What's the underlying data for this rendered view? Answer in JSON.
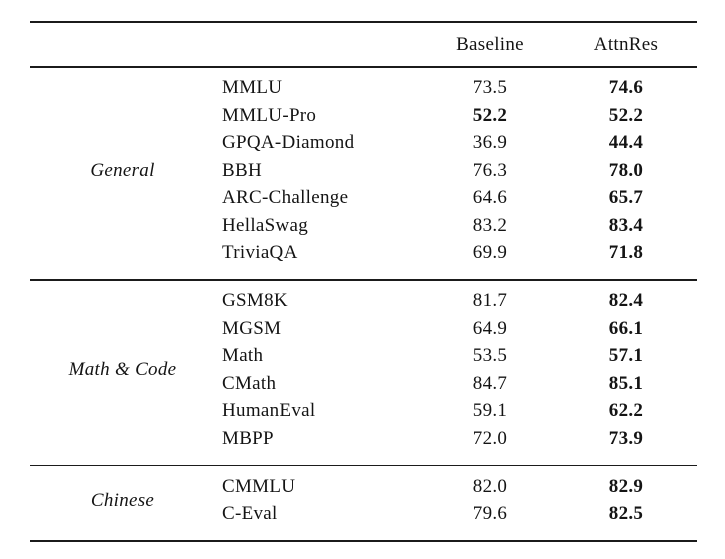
{
  "table": {
    "columns": [
      "Baseline",
      "AttnRes"
    ],
    "sections": [
      {
        "label": "General",
        "rows": [
          {
            "name": "MMLU",
            "baseline": "73.5",
            "attnres": "74.6",
            "baseline_bold": false,
            "attnres_bold": true
          },
          {
            "name": "MMLU-Pro",
            "baseline": "52.2",
            "attnres": "52.2",
            "baseline_bold": true,
            "attnres_bold": true
          },
          {
            "name": "GPQA-Diamond",
            "baseline": "36.9",
            "attnres": "44.4",
            "baseline_bold": false,
            "attnres_bold": true
          },
          {
            "name": "BBH",
            "baseline": "76.3",
            "attnres": "78.0",
            "baseline_bold": false,
            "attnres_bold": true
          },
          {
            "name": "ARC-Challenge",
            "baseline": "64.6",
            "attnres": "65.7",
            "baseline_bold": false,
            "attnres_bold": true
          },
          {
            "name": "HellaSwag",
            "baseline": "83.2",
            "attnres": "83.4",
            "baseline_bold": false,
            "attnres_bold": true
          },
          {
            "name": "TriviaQA",
            "baseline": "69.9",
            "attnres": "71.8",
            "baseline_bold": false,
            "attnres_bold": true
          }
        ]
      },
      {
        "label": "Math & Code",
        "rows": [
          {
            "name": "GSM8K",
            "baseline": "81.7",
            "attnres": "82.4",
            "baseline_bold": false,
            "attnres_bold": true
          },
          {
            "name": "MGSM",
            "baseline": "64.9",
            "attnres": "66.1",
            "baseline_bold": false,
            "attnres_bold": true
          },
          {
            "name": "Math",
            "baseline": "53.5",
            "attnres": "57.1",
            "baseline_bold": false,
            "attnres_bold": true
          },
          {
            "name": "CMath",
            "baseline": "84.7",
            "attnres": "85.1",
            "baseline_bold": false,
            "attnres_bold": true
          },
          {
            "name": "HumanEval",
            "baseline": "59.1",
            "attnres": "62.2",
            "baseline_bold": false,
            "attnres_bold": true
          },
          {
            "name": "MBPP",
            "baseline": "72.0",
            "attnres": "73.9",
            "baseline_bold": false,
            "attnres_bold": true
          }
        ]
      },
      {
        "label": "Chinese",
        "rows": [
          {
            "name": "CMMLU",
            "baseline": "82.0",
            "attnres": "82.9",
            "baseline_bold": false,
            "attnres_bold": true
          },
          {
            "name": "C-Eval",
            "baseline": "79.6",
            "attnres": "82.5",
            "baseline_bold": false,
            "attnres_bold": true
          }
        ]
      }
    ]
  },
  "colors": {
    "background": "#ffffff",
    "text": "#141414",
    "rule": "#1b1b1b"
  }
}
